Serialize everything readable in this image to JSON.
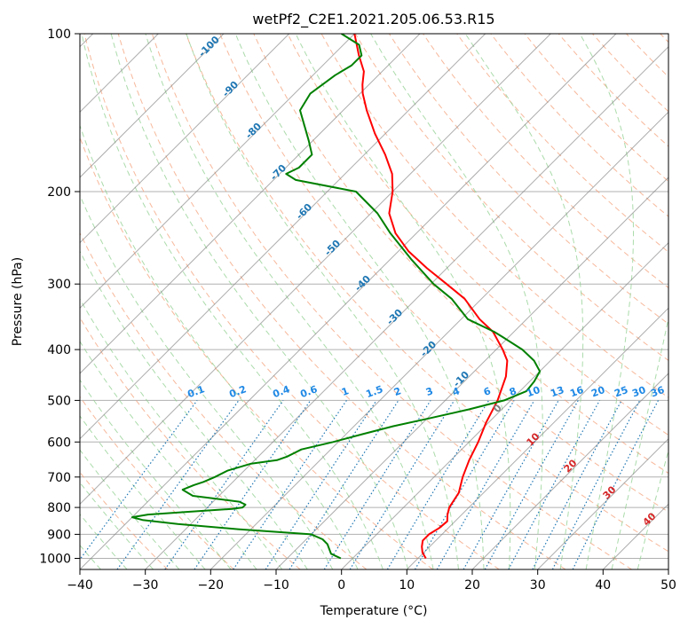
{
  "chart_data": {
    "type": "line",
    "title": "wetPf2_C2E1.2021.205.06.53.R15",
    "xlabel": "Temperature (°C)",
    "ylabel": "Pressure (hPa)",
    "xlim": [
      -40,
      50
    ],
    "ylim": [
      1050,
      100
    ],
    "y_scale": "log",
    "grid": true,
    "x_ticks": [
      -40,
      -30,
      -20,
      -10,
      0,
      10,
      20,
      30,
      40,
      50
    ],
    "y_ticks": [
      100,
      200,
      300,
      400,
      500,
      600,
      700,
      800,
      900,
      1000
    ],
    "skew": 45,
    "colors": {
      "temperature": "#ff0000",
      "dewpoint": "#008000",
      "dry_adiabat": "#f4a07a",
      "moist_adiabat": "#8fcf8f",
      "mixing_ratio": "#1f77b4",
      "isotherm": "#808080",
      "potential_temperature_label": "#1f77b4",
      "mixing_ratio_label": "#1e88e5",
      "wet_bulb_label": "#d62728"
    },
    "series": [
      {
        "name": "Temperature",
        "p": [
          1000,
          975,
          950,
          925,
          900,
          875,
          850,
          825,
          800,
          775,
          750,
          700,
          650,
          600,
          550,
          500,
          450,
          420,
          400,
          370,
          350,
          320,
          300,
          280,
          260,
          240,
          220,
          200,
          185,
          170,
          155,
          140,
          130,
          125,
          118,
          110,
          100
        ],
        "t": [
          11.2,
          9.8,
          8.8,
          8.0,
          8.0,
          8.6,
          8.8,
          7.8,
          7.0,
          6.6,
          6.2,
          4.4,
          2.8,
          1.4,
          -0.4,
          -2.0,
          -4.4,
          -6.6,
          -9.0,
          -13.2,
          -17.2,
          -22.6,
          -27.6,
          -33.0,
          -38.4,
          -43.2,
          -47.2,
          -50.0,
          -52.8,
          -56.8,
          -61.6,
          -66.4,
          -69.6,
          -71.0,
          -72.8,
          -76.0,
          -80.0
        ]
      },
      {
        "name": "Dewpoint",
        "p": [
          1000,
          980,
          960,
          940,
          920,
          900,
          880,
          860,
          845,
          835,
          825,
          815,
          805,
          800,
          790,
          780,
          770,
          760,
          740,
          725,
          715,
          700,
          680,
          660,
          650,
          640,
          620,
          600,
          580,
          560,
          540,
          520,
          500,
          480,
          460,
          440,
          420,
          400,
          380,
          370,
          350,
          320,
          300,
          270,
          240,
          220,
          200,
          190,
          185,
          180,
          170,
          160,
          150,
          140,
          130,
          120,
          115,
          110,
          105,
          100
        ],
        "td": [
          -1.8,
          -4.0,
          -5.0,
          -6.0,
          -7.5,
          -10.0,
          -22.0,
          -32.0,
          -38.0,
          -40.0,
          -38.0,
          -32.0,
          -26.0,
          -24.6,
          -24.6,
          -26.0,
          -30.0,
          -34.0,
          -36.5,
          -35.5,
          -34.5,
          -33.5,
          -32.5,
          -30.0,
          -26.6,
          -25.6,
          -24.5,
          -20.8,
          -17.5,
          -14.0,
          -9.5,
          -5.0,
          -1.0,
          1.0,
          0.7,
          0.0,
          -2.5,
          -6.0,
          -10.6,
          -13.0,
          -19.0,
          -24.6,
          -29.6,
          -36.6,
          -44.0,
          -49.0,
          -55.6,
          -66.6,
          -69.0,
          -68.0,
          -68.0,
          -70.6,
          -73.5,
          -76.6,
          -77.6,
          -76.6,
          -75.6,
          -75.6,
          -77.6,
          -82.0
        ]
      }
    ],
    "theta_labels": [
      -100,
      -90,
      -80,
      -70,
      -60,
      -50,
      -40,
      -30,
      -20,
      -10,
      0,
      10,
      20,
      30,
      40
    ],
    "mixing_ratio_labels": [
      "0.1",
      "0.2",
      "0.4",
      "0.6",
      "1",
      "1.5",
      "2",
      "3",
      "4",
      "6",
      "8",
      "10",
      "13",
      "16",
      "20",
      "25",
      "30",
      "36"
    ],
    "wet_bulb_labels": [
      0,
      10,
      20,
      30,
      40
    ]
  }
}
